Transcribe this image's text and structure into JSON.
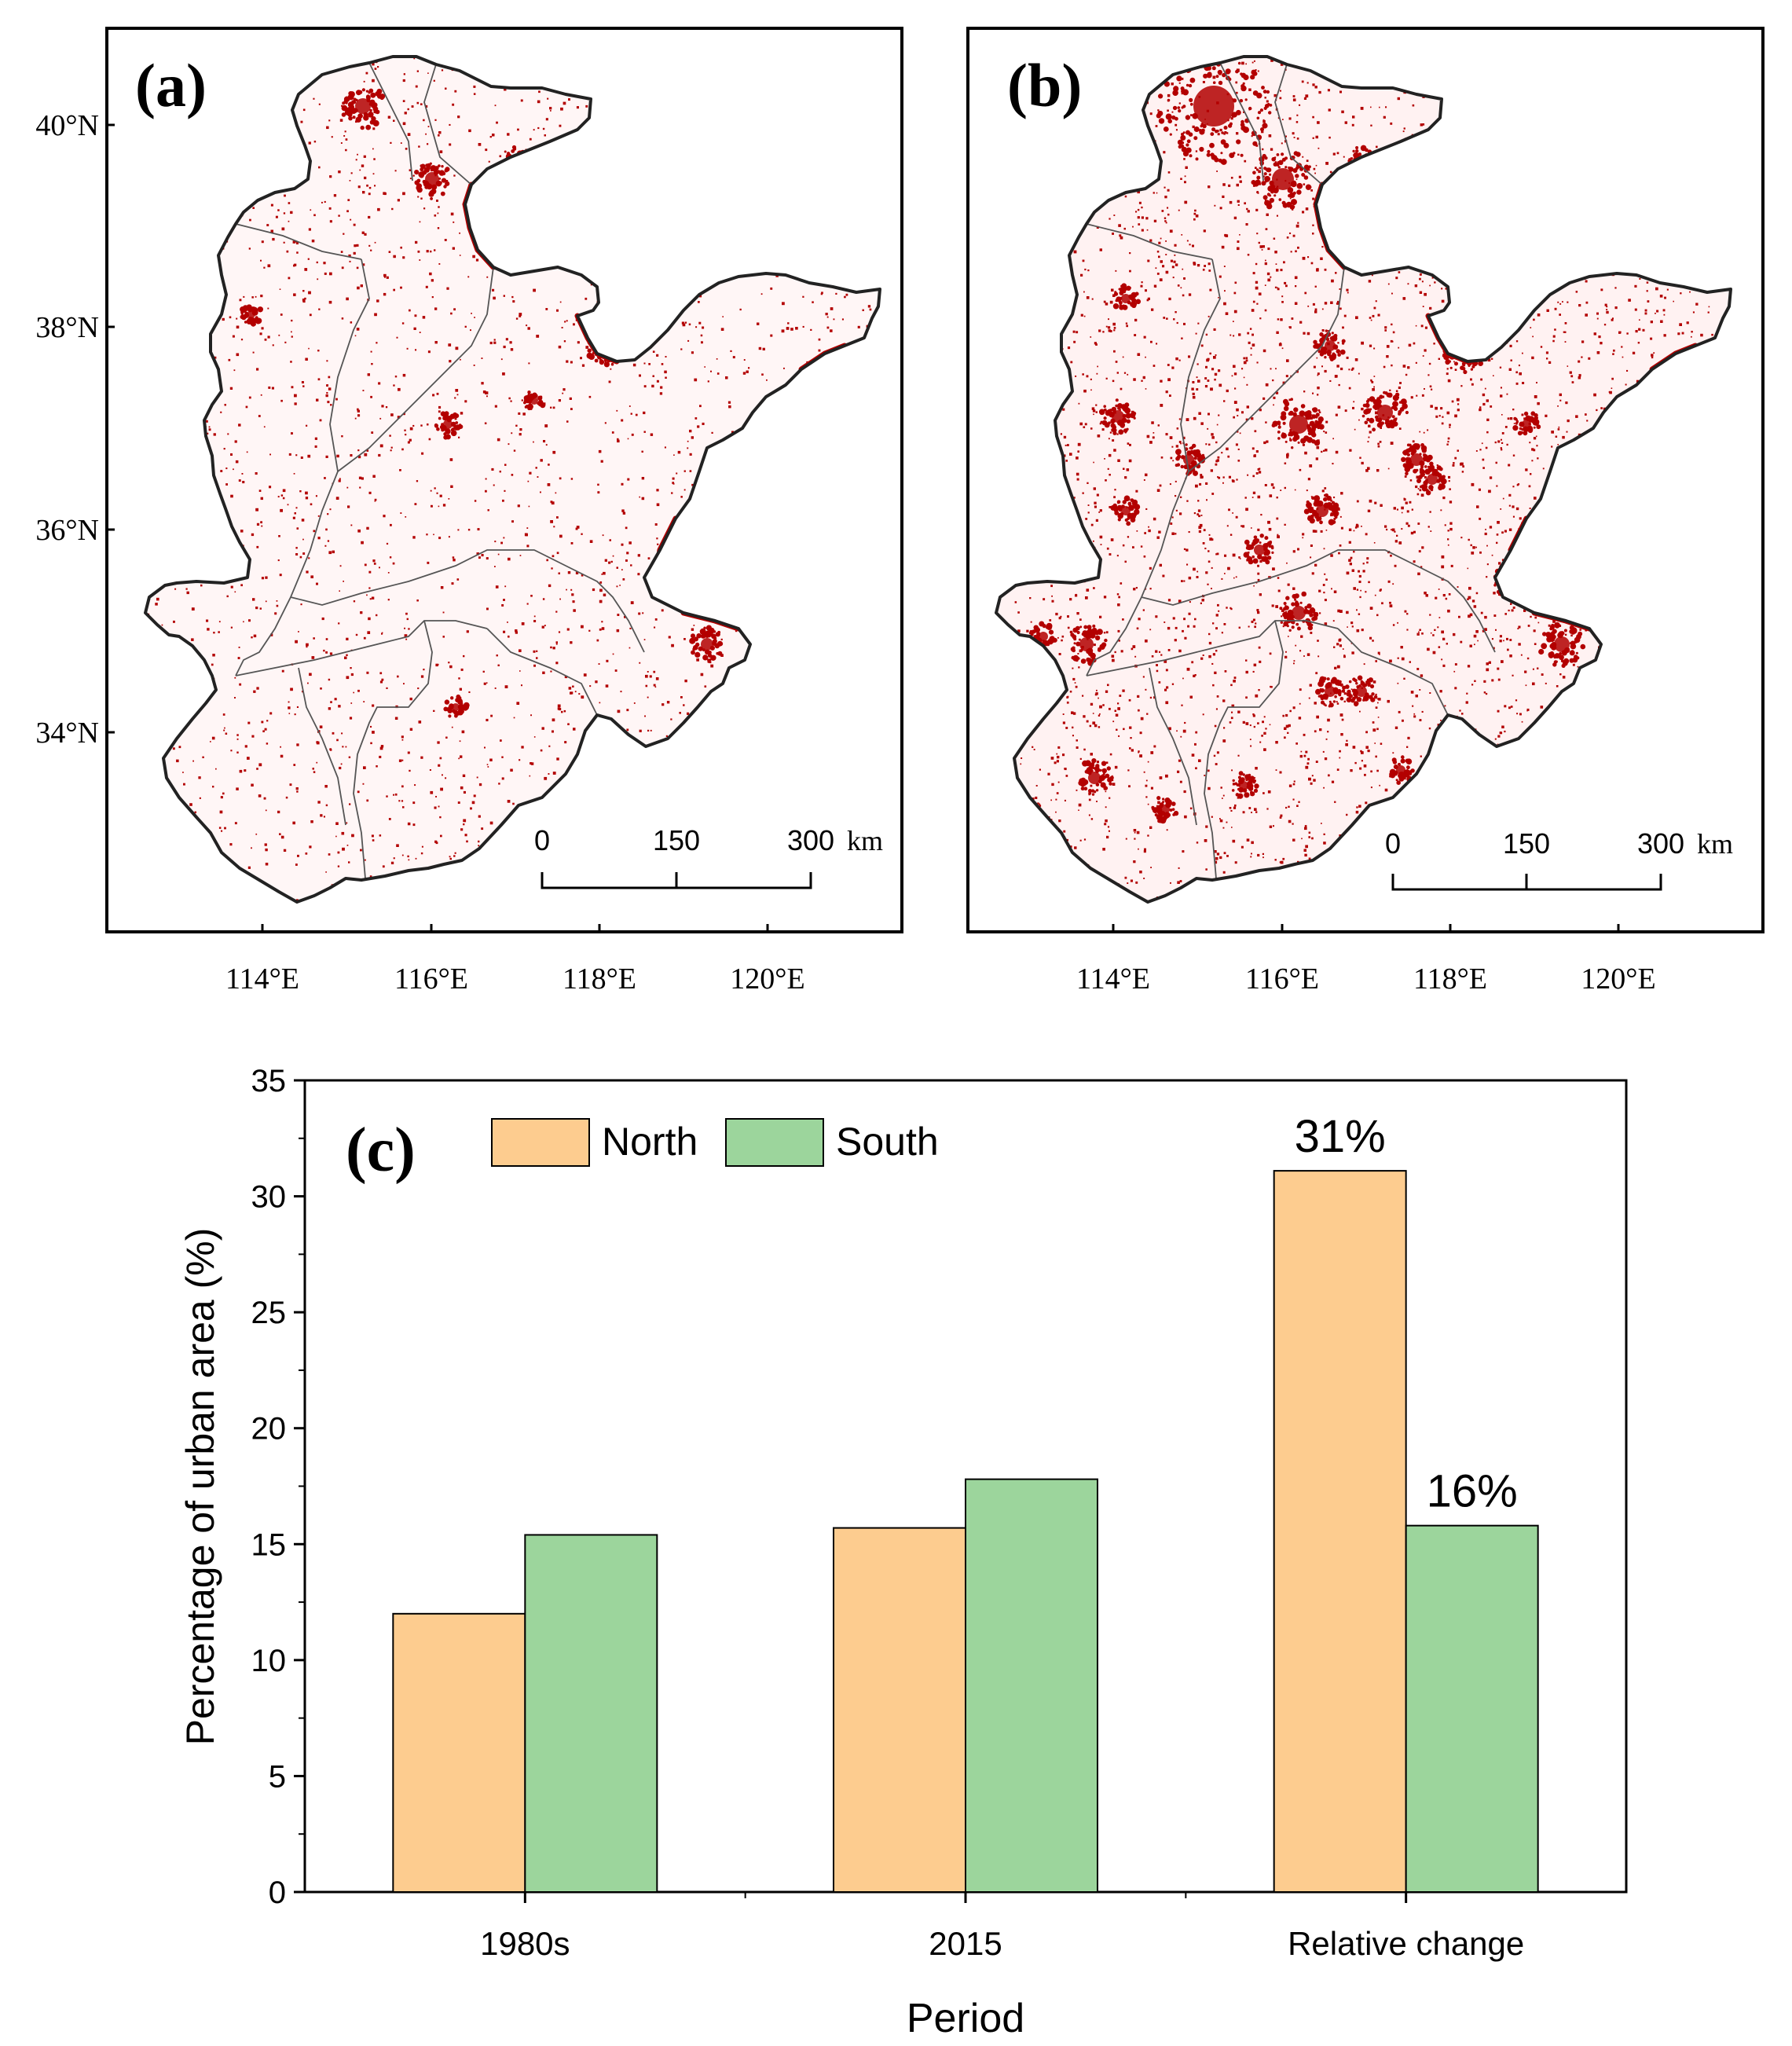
{
  "maps": [
    {
      "label": "(a)",
      "lat_ticks": [
        "40°N",
        "38°N",
        "36°N",
        "34°N"
      ],
      "lon_ticks": [
        "114°E",
        "116°E",
        "118°E",
        "120°E"
      ],
      "scale_labels": [
        "0",
        "150",
        "300"
      ],
      "scale_unit": "km",
      "colors": {
        "urban": "#b30000",
        "boundary": "#222222"
      }
    },
    {
      "label": "(b)",
      "lat_ticks": [],
      "lon_ticks": [
        "114°E",
        "116°E",
        "118°E",
        "120°E"
      ],
      "scale_labels": [
        "0",
        "150",
        "300"
      ],
      "scale_unit": "km",
      "colors": {
        "urban": "#b30000",
        "boundary": "#222222"
      }
    }
  ],
  "chart_data": {
    "type": "bar",
    "panel_label": "(c)",
    "categories": [
      "1980s",
      "2015",
      "Relative change"
    ],
    "series": [
      {
        "name": "North",
        "values": [
          12.0,
          15.7,
          31.1
        ],
        "color": "#fdcc8f"
      },
      {
        "name": "South",
        "values": [
          15.4,
          17.8,
          15.8
        ],
        "color": "#9cd59c"
      }
    ],
    "annotations": [
      {
        "text": "31%",
        "category": "Relative change",
        "series": "North"
      },
      {
        "text": "16%",
        "category": "Relative change",
        "series": "South"
      }
    ],
    "xlabel": "Period",
    "ylabel": "Percentage of urban area (%)",
    "ylim": [
      0,
      35
    ],
    "yticks": [
      "0",
      "5",
      "10",
      "15",
      "20",
      "25",
      "30",
      "35"
    ],
    "legend": "top-left"
  }
}
